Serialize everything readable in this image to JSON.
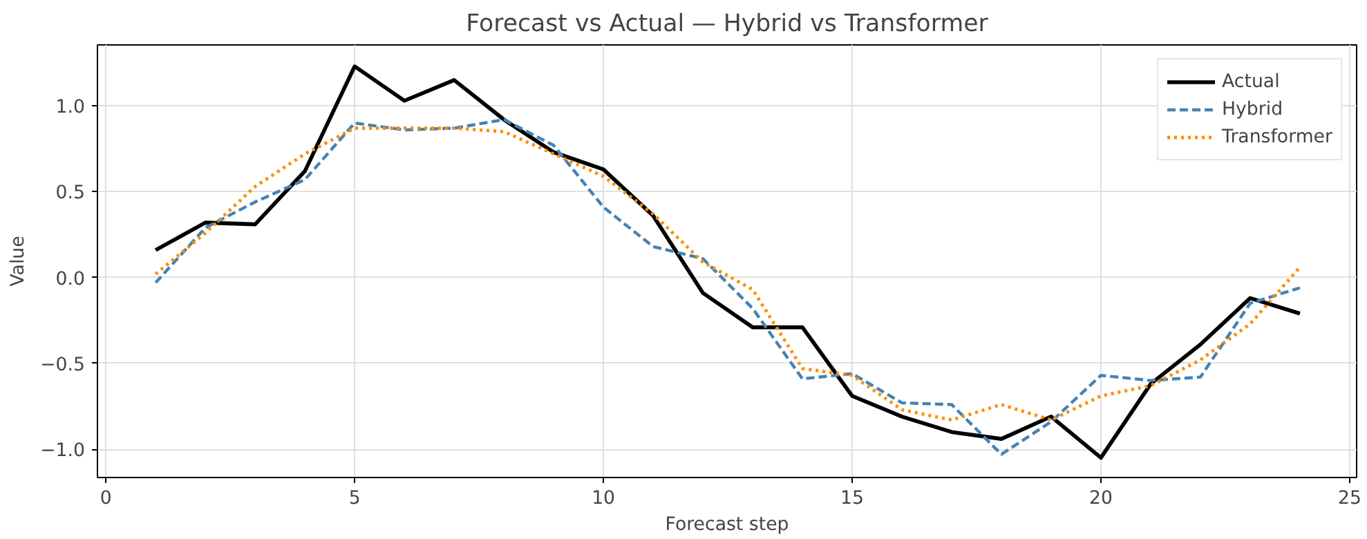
{
  "chart_data": {
    "type": "line",
    "title": "Forecast vs Actual — Hybrid vs Transformer",
    "xlabel": "Forecast step",
    "ylabel": "Value",
    "x": [
      1,
      2,
      3,
      4,
      5,
      6,
      7,
      8,
      9,
      10,
      11,
      12,
      13,
      14,
      15,
      16,
      17,
      18,
      19,
      20,
      21,
      22,
      23,
      24
    ],
    "series": [
      {
        "name": "Actual",
        "color": "#000000",
        "line_style": "solid",
        "values": [
          0.16,
          0.32,
          0.31,
          0.62,
          1.23,
          1.03,
          1.15,
          0.92,
          0.73,
          0.63,
          0.36,
          -0.09,
          -0.29,
          -0.29,
          -0.69,
          -0.81,
          -0.9,
          -0.94,
          -0.81,
          -1.05,
          -0.62,
          -0.39,
          -0.12,
          -0.21
        ]
      },
      {
        "name": "Hybrid",
        "color": "#4682b4",
        "line_style": "dashed",
        "values": [
          -0.03,
          0.29,
          0.44,
          0.57,
          0.9,
          0.86,
          0.87,
          0.92,
          0.77,
          0.41,
          0.18,
          0.11,
          -0.18,
          -0.59,
          -0.56,
          -0.73,
          -0.74,
          -1.03,
          -0.84,
          -0.57,
          -0.6,
          -0.58,
          -0.15,
          -0.06
        ]
      },
      {
        "name": "Transformer",
        "color": "#ff8c00",
        "line_style": "dotted",
        "values": [
          0.02,
          0.26,
          0.53,
          0.72,
          0.87,
          0.87,
          0.87,
          0.85,
          0.72,
          0.59,
          0.37,
          0.09,
          -0.07,
          -0.53,
          -0.57,
          -0.77,
          -0.83,
          -0.74,
          -0.83,
          -0.69,
          -0.63,
          -0.48,
          -0.27,
          0.06
        ]
      }
    ],
    "xlim": [
      -0.17,
      25.14
    ],
    "ylim": [
      -1.165,
      1.355
    ],
    "xticks": [
      0,
      5,
      10,
      15,
      20,
      25
    ],
    "yticks": [
      {
        "value": -1.0,
        "label": "−1.0"
      },
      {
        "value": -0.5,
        "label": "−0.5"
      },
      {
        "value": 0.0,
        "label": "0.0"
      },
      {
        "value": 0.5,
        "label": "0.5"
      },
      {
        "value": 1.0,
        "label": "1.0"
      }
    ],
    "grid": true,
    "legend": "top right",
    "marker": "none"
  }
}
